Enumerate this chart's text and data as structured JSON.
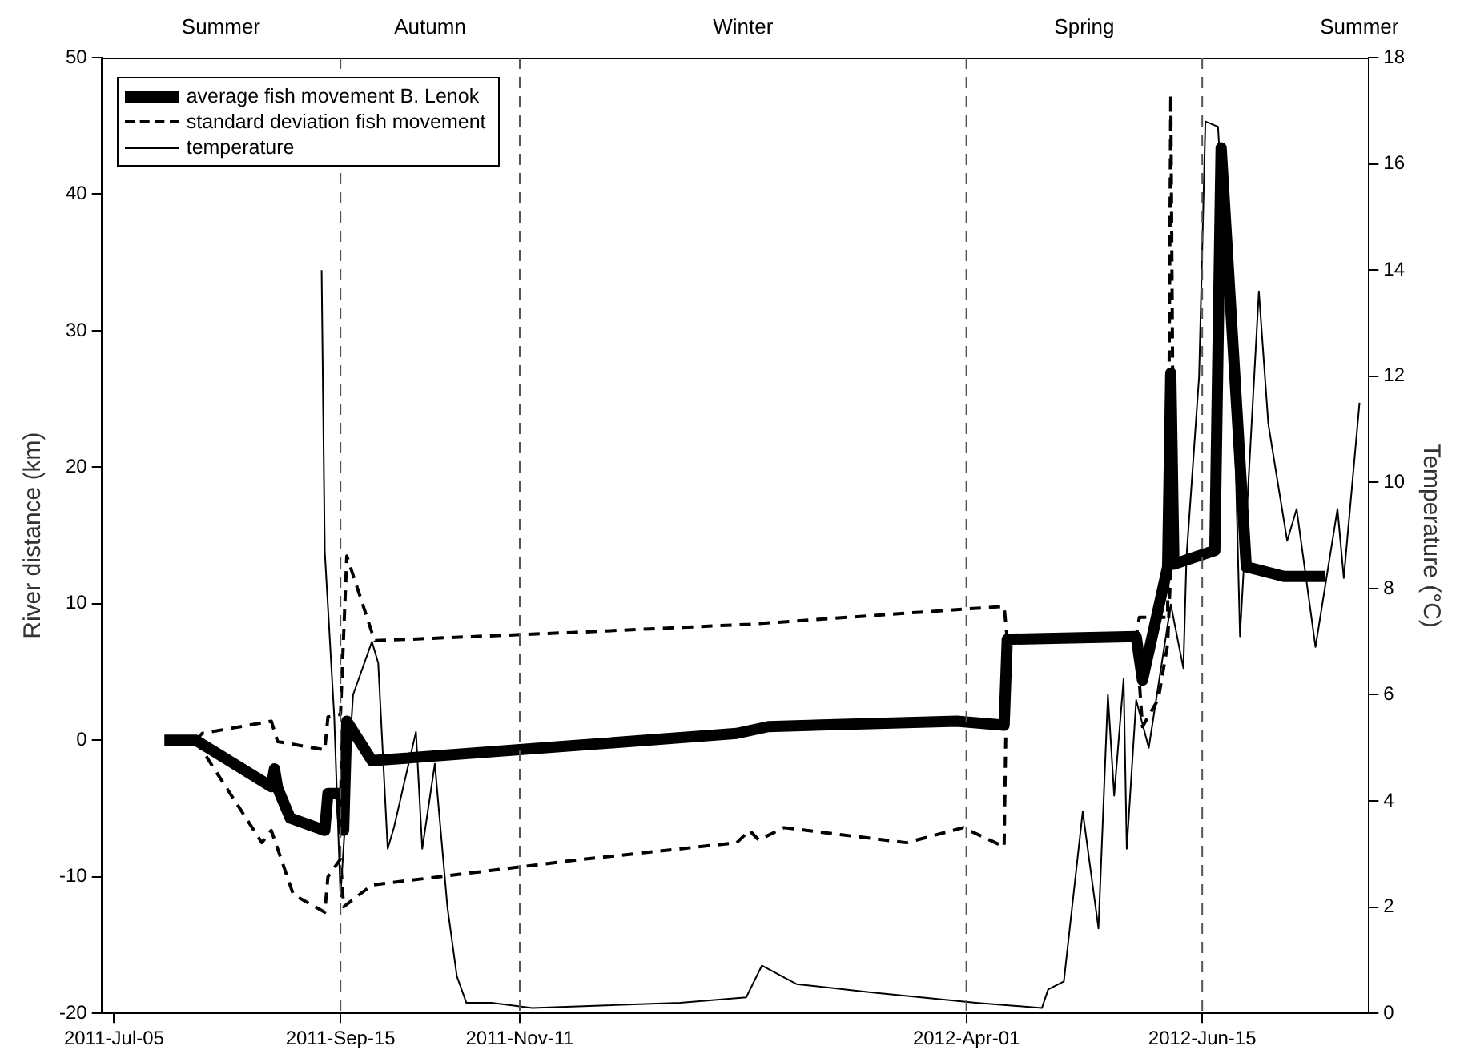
{
  "chart_data": {
    "type": "line",
    "ylabel": "River distance (km)",
    "y2label": "Temperature (°C)",
    "xlim": [
      "2011-07-01",
      "2012-08-07"
    ],
    "xticks": [
      {
        "value": "2011-07-05",
        "label": "2011-Jul-05"
      },
      {
        "value": "2011-09-15",
        "label": "2011-Sep-15"
      },
      {
        "value": "2011-11-11",
        "label": "2011-Nov-11"
      },
      {
        "value": "2012-04-01",
        "label": "2012-Apr-01"
      },
      {
        "value": "2012-06-15",
        "label": "2012-Jun-15"
      }
    ],
    "annotations": [
      "Summer",
      "Autumn",
      "Winter",
      "Spring",
      "Summer"
    ],
    "ylim": [
      -20,
      50
    ],
    "yticks": [
      -20,
      -10,
      0,
      10,
      20,
      30,
      40,
      50
    ],
    "y2lim": [
      0,
      18
    ],
    "y2ticks": [
      0,
      2,
      4,
      6,
      8,
      10,
      12,
      14,
      16,
      18
    ],
    "legend": "top left",
    "ref_lines": [
      {
        "axis": "x",
        "value": "2011-09-15",
        "color": "#555555",
        "line_style": "dashed"
      },
      {
        "axis": "x",
        "value": "2011-11-11",
        "color": "#555555",
        "line_style": "dashed"
      },
      {
        "axis": "x",
        "value": "2012-04-01",
        "color": "#555555",
        "line_style": "dashed"
      },
      {
        "axis": "x",
        "value": "2012-06-15",
        "color": "#555555",
        "line_style": "dashed"
      }
    ],
    "series": [
      {
        "name": "average fish movement B. Lenok",
        "color": "#000000",
        "x": [
          "2011-07-21",
          "2011-07-31",
          "2011-08-24",
          "2011-08-25",
          "2011-08-26",
          "2011-08-30",
          "2011-09-10",
          "2011-09-11",
          "2011-09-15",
          "2011-09-16",
          "2011-09-17",
          "2011-09-25",
          "2011-11-28",
          "2012-01-19",
          "2012-01-29",
          "2012-03-29",
          "2012-04-13",
          "2012-04-14",
          "2012-05-25",
          "2012-05-27",
          "2012-06-04",
          "2012-06-05",
          "2012-06-06",
          "2012-06-19",
          "2012-06-21",
          "2012-06-29",
          "2012-07-11",
          "2012-07-24"
        ],
        "values": [
          0,
          0,
          -3.4,
          -2.1,
          -3.5,
          -5.7,
          -6.6,
          -3.9,
          -3.9,
          -6.6,
          1.4,
          -1.5,
          -0.4,
          0.5,
          1,
          1.4,
          1.1,
          7.4,
          7.6,
          4.4,
          12.7,
          26.9,
          12.9,
          13.9,
          43.4,
          12.7,
          12,
          12
        ]
      },
      {
        "name": "standard deviation fish movement",
        "color": "#000000",
        "line_style": "dashed",
        "x": [
          "2011-07-31",
          "2011-08-02",
          "2011-08-24",
          "2011-08-26",
          "2011-09-10",
          "2011-09-11",
          "2011-09-15",
          "2011-09-17",
          "2011-09-25",
          "2011-09-26",
          "2011-11-28",
          "2012-01-23",
          "2012-03-31",
          "2012-04-13",
          "2012-04-14",
          "2012-05-25",
          "2012-05-26",
          "2012-06-04",
          "2012-06-05",
          "2012-06-06"
        ],
        "values": [
          0,
          0.5,
          1.4,
          -0.1,
          -0.7,
          1.7,
          1.9,
          13.5,
          7.9,
          7.3,
          7.9,
          8.5,
          9.6,
          9.8,
          7.4,
          7.6,
          9,
          9,
          47.3,
          12.9
        ]
      },
      {
        "color": "#000000",
        "line_style": "dashed",
        "x": [
          "2011-07-31",
          "2011-08-21",
          "2011-08-24",
          "2011-08-31",
          "2011-09-10",
          "2011-09-11",
          "2011-09-15",
          "2011-09-16",
          "2011-09-25",
          "2011-11-28",
          "2012-01-19",
          "2012-01-23",
          "2012-01-26",
          "2012-02-03",
          "2012-03-13",
          "2012-03-31",
          "2012-04-13",
          "2012-04-14",
          "2012-05-25",
          "2012-05-27",
          "2012-06-01",
          "2012-06-04",
          "2012-06-05",
          "2012-06-06"
        ],
        "values": [
          0,
          -7.5,
          -6.6,
          -11.3,
          -12.6,
          -10,
          -8.7,
          -12.2,
          -10.6,
          -8.8,
          -7.5,
          -6.6,
          -7.3,
          -6.4,
          -7.5,
          -6.4,
          -7.8,
          7.4,
          7.6,
          1,
          3,
          7,
          12.7,
          12.9
        ]
      },
      {
        "name": "temperature",
        "color": "#000000",
        "axis": "y2",
        "x": [
          "2011-09-09",
          "2011-09-10",
          "2011-09-13",
          "2011-09-15",
          "2011-09-19",
          "2011-09-25",
          "2011-09-27",
          "2011-09-30",
          "2011-10-02",
          "2011-10-09",
          "2011-10-11",
          "2011-10-15",
          "2011-10-19",
          "2011-10-22",
          "2011-10-25",
          "2011-11-02",
          "2011-11-15",
          "2012-01-01",
          "2012-01-22",
          "2012-01-27",
          "2012-02-07",
          "2012-03-01",
          "2012-04-04",
          "2012-04-25",
          "2012-04-27",
          "2012-05-02",
          "2012-05-08",
          "2012-05-13",
          "2012-05-16",
          "2012-05-18",
          "2012-05-21",
          "2012-05-22",
          "2012-05-25",
          "2012-05-29",
          "2012-06-05",
          "2012-06-09",
          "2012-06-10",
          "2012-06-14",
          "2012-06-16",
          "2012-06-20",
          "2012-06-25",
          "2012-06-27",
          "2012-07-03",
          "2012-07-06",
          "2012-07-12",
          "2012-07-15",
          "2012-07-21",
          "2012-07-28",
          "2012-07-30",
          "2012-08-04"
        ],
        "values": [
          14,
          8.7,
          5.6,
          2.2,
          6,
          7,
          6.6,
          3.1,
          3.5,
          5.3,
          3.1,
          4.7,
          2,
          0.7,
          0.2,
          0.2,
          0.1,
          0.2,
          0.3,
          0.9,
          0.55,
          0.4,
          0.2,
          0.1,
          0.45,
          0.6,
          3.8,
          1.6,
          6,
          4.1,
          6.3,
          3.1,
          5.9,
          5,
          7.7,
          6.5,
          8.6,
          12,
          16.8,
          16.7,
          11.8,
          7.1,
          13.6,
          11.1,
          8.9,
          9.5,
          6.9,
          9.5,
          8.2,
          11.5
        ]
      }
    ]
  }
}
